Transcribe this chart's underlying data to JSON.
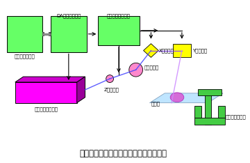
{
  "title": "レーザを用いた小型着色装置（概念図）",
  "title_fontsize": 8.5,
  "bg_color": "#ffffff",
  "green_color": "#66ff66",
  "magenta_color": "#ff00ff",
  "magenta_dark": "#cc00cc",
  "magenta_darker": "#990099",
  "yellow_color": "#ffff00",
  "pink_color": "#ff88cc",
  "cyan_light": "#aaddff",
  "stage_green": "#44cc44",
  "labels": {
    "computer": "コンピューター",
    "da_converter": "DAコンバーター",
    "servo_driver": "サーボドライバー",
    "z_lens": "Z軸レンズ",
    "objective": "対物レンズ",
    "x_mirror": "X軸ミラー",
    "y_mirror": "Y軸ミラー",
    "uv_laser": "紫外パルスレーザ",
    "glass": "ガラス",
    "xyz_stage": "ＸＹＺステージ"
  }
}
